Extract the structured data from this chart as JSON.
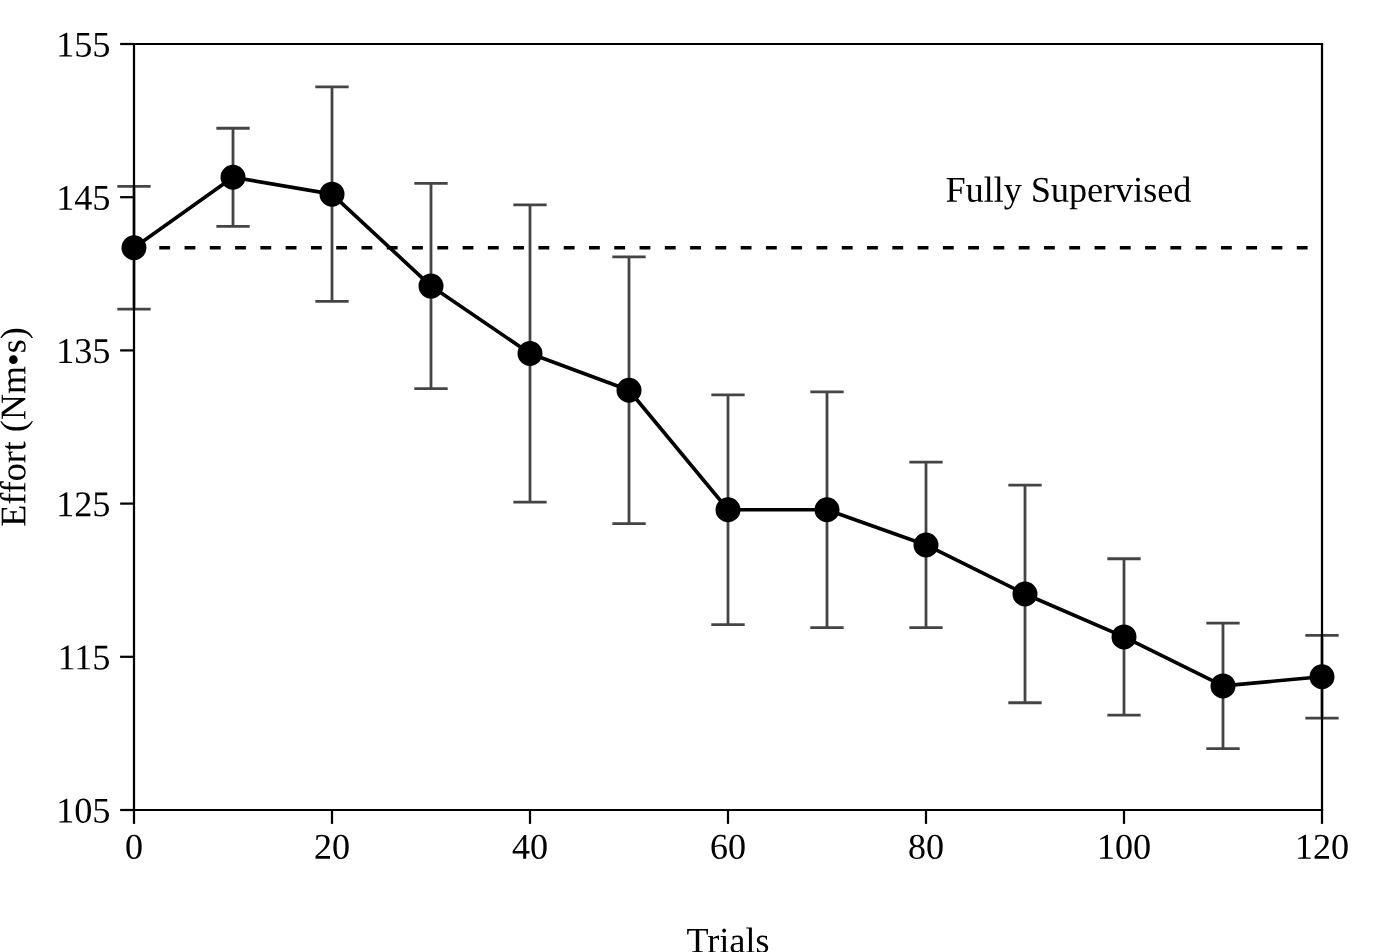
{
  "chart_data": {
    "type": "line",
    "xlabel": "Trials",
    "ylabel": "Effort (Nm•s)",
    "x": [
      0,
      10,
      20,
      30,
      40,
      50,
      60,
      70,
      80,
      90,
      100,
      110,
      120
    ],
    "series": [
      {
        "color": "#000000",
        "values": [
          141.7,
          146.3,
          145.2,
          139.2,
          134.8,
          132.4,
          124.6,
          124.6,
          122.3,
          119.1,
          116.3,
          113.1,
          113.7
        ],
        "errors": [
          4,
          3.2,
          7,
          6.7,
          9.7,
          8.7,
          7.5,
          7.7,
          5.4,
          7.1,
          5.1,
          4.1,
          2.7
        ]
      }
    ],
    "xlim": [
      0,
      120
    ],
    "xticks": [
      0,
      20,
      40,
      60,
      80,
      100,
      120
    ],
    "ylim": [
      105,
      155
    ],
    "yticks": [
      105,
      115,
      125,
      135,
      145,
      155
    ],
    "ref_lines": [
      {
        "axis": "y",
        "value": 141.7,
        "label": "Fully Supervised",
        "line_style": "dotted",
        "color": "#000000"
      }
    ],
    "marker": "circle",
    "line_style": "solid",
    "grid": false,
    "legend": false
  }
}
